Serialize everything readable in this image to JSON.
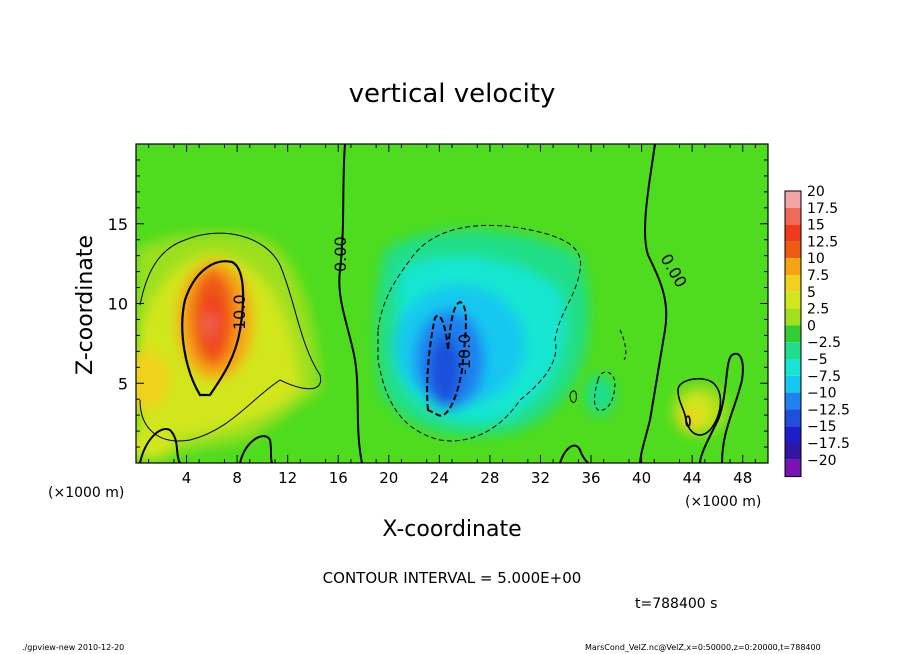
{
  "chart_data": {
    "type": "heatmap",
    "title": "vertical velocity",
    "xlabel": "X-coordinate",
    "ylabel": "Z-coordinate",
    "x_unit": "(×1000 m)",
    "y_unit": "(×1000 m)",
    "xlim": [
      0,
      50
    ],
    "ylim": [
      0,
      20
    ],
    "xticks": [
      4,
      8,
      12,
      16,
      20,
      24,
      28,
      32,
      36,
      40,
      44,
      48
    ],
    "yticks": [
      5,
      10,
      15
    ],
    "xtick_labels": [
      "4",
      "8",
      "12",
      "16",
      "20",
      "24",
      "28",
      "32",
      "36",
      "40",
      "44",
      "48"
    ],
    "ytick_labels": [
      "5",
      "10",
      "15"
    ],
    "colorbar": {
      "labels": [
        "20",
        "17.5",
        "15",
        "12.5",
        "10",
        "7.5",
        "5",
        "2.5",
        "0",
        "−2.5",
        "−5",
        "−7.5",
        "−10",
        "−12.5",
        "−15",
        "−17.5",
        "−20"
      ],
      "levels": [
        20,
        17.5,
        15,
        12.5,
        10,
        7.5,
        5,
        2.5,
        0,
        -2.5,
        -5,
        -7.5,
        -10,
        -12.5,
        -15,
        -17.5,
        -20
      ],
      "colors": [
        "#f4a4a4",
        "#f06a5a",
        "#f03a1e",
        "#f05a14",
        "#f5a514",
        "#f0d21e",
        "#d2e61e",
        "#a0e01e",
        "#32cd32",
        "#1ede8c",
        "#14e6d2",
        "#14c8f0",
        "#1e82f0",
        "#1e50dc",
        "#1e1ec8",
        "#3214a0",
        "#7814b4"
      ]
    },
    "contour_labels": [
      "0.00",
      "10.0",
      "-10.0",
      "0.00"
    ],
    "features": [
      {
        "kind": "updraft",
        "x": 6.2,
        "z": 8.5,
        "peak": 17
      },
      {
        "kind": "downdraft",
        "x": 24.5,
        "z": 6.5,
        "peak": -13
      },
      {
        "kind": "updraft",
        "x": 43.5,
        "z": 2.8,
        "peak": 9
      }
    ],
    "contour_interval_text": "CONTOUR INTERVAL = 5.000E+00",
    "time_text": "t=788400 s"
  },
  "footer": {
    "left": "./gpview-new  2010-12-20",
    "right": "MarsCond_VelZ.nc@VelZ,x=0:50000,z=0:20000,t=788400"
  }
}
